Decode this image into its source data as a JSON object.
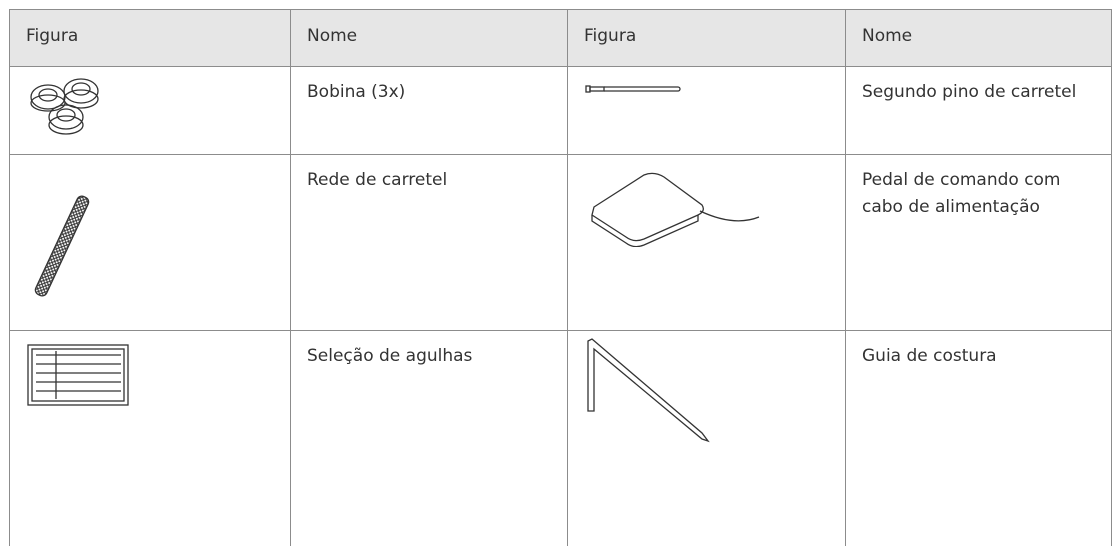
{
  "table": {
    "header": [
      "Figura",
      "Nome",
      "Figura",
      "Nome"
    ],
    "rows": [
      [
        "Bobina (3x)",
        "Segundo pino de carretel"
      ],
      [
        "Rede de carretel",
        "Pedal de comando com cabo de alimentação"
      ],
      [
        "Seleção de agulhas",
        "Guia de costura"
      ]
    ]
  }
}
